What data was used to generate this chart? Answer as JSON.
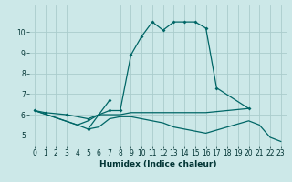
{
  "xlabel": "Humidex (Indice chaleur)",
  "background_color": "#cce8e8",
  "line_color": "#006666",
  "grid_color": "#aacccc",
  "xlim": [
    -0.5,
    23.5
  ],
  "ylim": [
    4.5,
    11.3
  ],
  "xticks": [
    0,
    1,
    2,
    3,
    4,
    5,
    6,
    7,
    8,
    9,
    10,
    11,
    12,
    13,
    14,
    15,
    16,
    17,
    18,
    19,
    20,
    21,
    22,
    23
  ],
  "yticks": [
    5,
    6,
    7,
    8,
    9,
    10
  ],
  "line1_x": [
    0,
    1,
    3,
    5,
    6,
    7,
    8,
    9,
    10,
    11,
    12,
    13,
    14,
    15,
    16,
    17,
    20
  ],
  "line1_y": [
    6.2,
    6.1,
    6.0,
    5.8,
    6.0,
    6.2,
    6.2,
    8.9,
    9.8,
    10.5,
    10.1,
    10.5,
    10.5,
    10.5,
    10.2,
    7.3,
    6.3
  ],
  "line2_x": [
    0,
    4,
    5,
    6,
    7,
    8,
    9,
    10,
    11,
    12,
    13,
    14,
    15,
    16,
    20
  ],
  "line2_y": [
    6.2,
    5.5,
    5.7,
    6.0,
    6.0,
    6.0,
    6.1,
    6.1,
    6.1,
    6.1,
    6.1,
    6.1,
    6.1,
    6.1,
    6.3
  ],
  "line3_x": [
    0,
    4,
    5,
    6,
    7,
    8,
    9,
    10,
    11,
    12,
    13,
    14,
    15,
    16,
    20,
    21,
    22,
    23
  ],
  "line3_y": [
    6.2,
    5.5,
    5.3,
    5.4,
    5.8,
    5.9,
    5.9,
    5.8,
    5.7,
    5.6,
    5.4,
    5.3,
    5.2,
    5.1,
    5.7,
    5.5,
    4.9,
    4.7
  ],
  "line4_x": [
    5,
    7
  ],
  "line4_y": [
    5.3,
    6.7
  ],
  "tick_fontsize": 5.5,
  "xlabel_fontsize": 6.5
}
